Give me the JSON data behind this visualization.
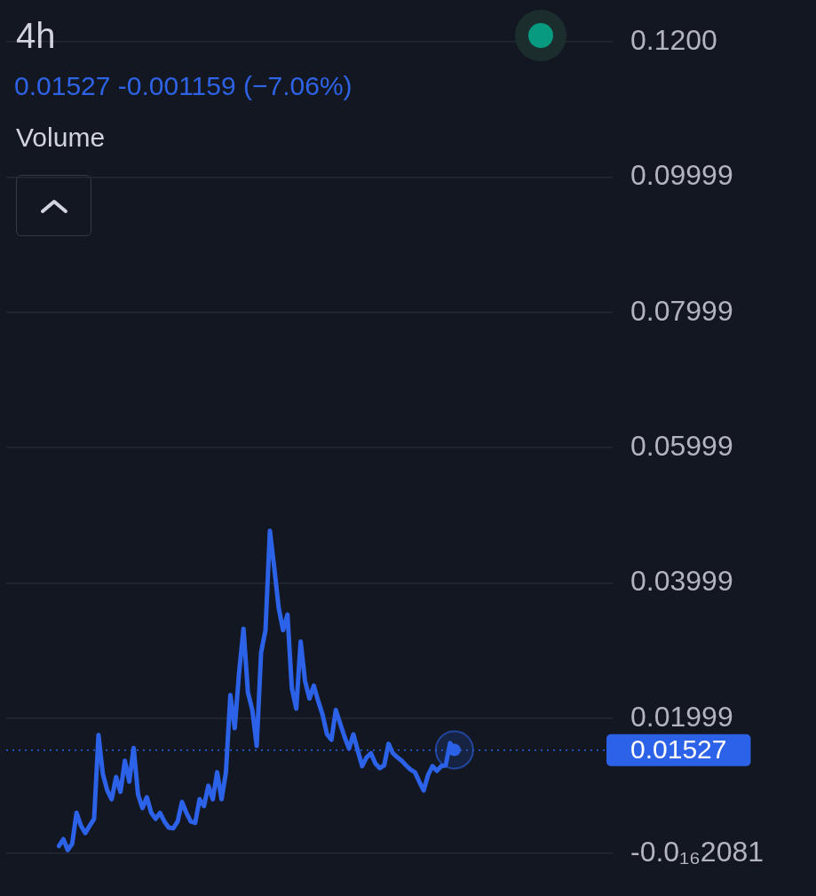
{
  "chart_data": {
    "type": "line",
    "title": "4h",
    "subtitle": "0.01527 -0.001159 (−7.06%)",
    "annotations": [
      "Volume"
    ],
    "categories": [
      null,
      null,
      null,
      null,
      null,
      null,
      null,
      null,
      null,
      null,
      null,
      null,
      null,
      null,
      null,
      null,
      null,
      null,
      null,
      null,
      null,
      null,
      null,
      null,
      null,
      null,
      null,
      null,
      null,
      null,
      null,
      null,
      null,
      null,
      null,
      null,
      null,
      null,
      null,
      null,
      null,
      null,
      null,
      null,
      null,
      null,
      null,
      null,
      null,
      null,
      null,
      null,
      null,
      null,
      null,
      null,
      null,
      null,
      null,
      null,
      null,
      null,
      null,
      null,
      null,
      null,
      null,
      null,
      null,
      null,
      null,
      null,
      null,
      null,
      null,
      null,
      null,
      null,
      null,
      null,
      null,
      null,
      null,
      null,
      null,
      null,
      null,
      null,
      null,
      null,
      null,
      null,
      null,
      null,
      null,
      null,
      null,
      null,
      null,
      null,
      null,
      null,
      null,
      null,
      null,
      null,
      null,
      null,
      null,
      null,
      null,
      null,
      null,
      null,
      null,
      null,
      null,
      null,
      null,
      null,
      null,
      null,
      null,
      null,
      null,
      null,
      null,
      null,
      null,
      null,
      null,
      null,
      null,
      null,
      null,
      null,
      null,
      null,
      null
    ],
    "series": [
      {
        "color": "#2b62e8",
        "marker": "none",
        "values": [
          null,
          null,
          null,
          null,
          null,
          null,
          null,
          null,
          null,
          null,
          null,
          null,
          0.0011,
          0.0021,
          0.0005,
          0.0014,
          0.006,
          0.0041,
          0.003,
          0.0041,
          0.0051,
          0.0175,
          0.0117,
          0.0093,
          0.008,
          0.0113,
          0.0091,
          0.0137,
          0.0106,
          0.0156,
          0.0087,
          0.0067,
          0.0083,
          0.006,
          0.0051,
          0.006,
          0.0047,
          0.0038,
          0.0037,
          0.0047,
          0.0076,
          0.006,
          0.0047,
          0.0045,
          0.008,
          0.007,
          0.01,
          0.008,
          0.012,
          0.008,
          0.012,
          0.0234,
          0.0185,
          0.0268,
          0.0332,
          0.0238,
          0.0212,
          0.0159,
          0.0297,
          0.033,
          0.0477,
          0.0422,
          0.0363,
          0.033,
          0.0353,
          0.0244,
          0.0214,
          0.0313,
          0.0255,
          0.0229,
          0.0248,
          0.0225,
          0.0205,
          0.0176,
          0.0168,
          0.0212,
          0.0192,
          0.0172,
          0.0155,
          0.0176,
          0.0152,
          0.0129,
          0.0142,
          0.0148,
          0.0133,
          0.0126,
          0.013,
          0.0162,
          0.0148,
          0.0142,
          0.0137,
          0.013,
          0.0124,
          0.012,
          0.0106,
          0.0093,
          0.0116,
          0.0129,
          0.0122,
          0.0129,
          0.013,
          0.0163,
          0.0153,
          null,
          null,
          null,
          null,
          null,
          null,
          null,
          null,
          null,
          null,
          null,
          null,
          null,
          null,
          null,
          null,
          null,
          null,
          null,
          null,
          null,
          null,
          null,
          null,
          null,
          null,
          null,
          null,
          null,
          null,
          null,
          null,
          null,
          null,
          null,
          null
        ]
      },
      {
        "type": "scatter",
        "color": "#2b62e8",
        "marker": "circle",
        "values": [
          null,
          null,
          null,
          null,
          null,
          null,
          null,
          null,
          null,
          null,
          null,
          null,
          null,
          null,
          null,
          null,
          null,
          null,
          null,
          null,
          null,
          null,
          null,
          null,
          null,
          null,
          null,
          null,
          null,
          null,
          null,
          null,
          null,
          null,
          null,
          null,
          null,
          null,
          null,
          null,
          null,
          null,
          null,
          null,
          null,
          null,
          null,
          null,
          null,
          null,
          null,
          null,
          null,
          null,
          null,
          null,
          null,
          null,
          null,
          null,
          null,
          null,
          null,
          null,
          null,
          null,
          null,
          null,
          null,
          null,
          null,
          null,
          null,
          null,
          null,
          null,
          null,
          null,
          null,
          null,
          null,
          null,
          null,
          null,
          null,
          null,
          null,
          null,
          null,
          null,
          null,
          null,
          null,
          null,
          null,
          null,
          null,
          null,
          null,
          null,
          null,
          null,
          0.0153,
          null,
          null,
          null,
          null,
          null,
          null,
          null,
          null,
          null,
          null,
          null,
          null,
          null,
          null,
          null,
          null,
          null,
          null,
          null,
          null,
          null,
          null,
          null,
          null,
          null,
          null,
          null,
          null,
          null,
          null,
          null,
          null,
          null,
          null,
          null,
          null
        ]
      }
    ],
    "ylim": [
      -2.081e-17,
      0.12
    ],
    "yticks": [
      {
        "value": -2.081e-17,
        "label": "-0.0₁₆2081"
      },
      0.01999,
      0.03999,
      0.05999,
      0.07999,
      0.09999,
      {
        "value": 0.12,
        "label": "0.1200"
      }
    ],
    "ref_lines": [
      {
        "axis": "y",
        "value": 0.01527,
        "label": "0.01527",
        "color": "#2b62e8",
        "line_style": "dotted"
      }
    ],
    "grid": "y",
    "tick_labels": "y"
  }
}
